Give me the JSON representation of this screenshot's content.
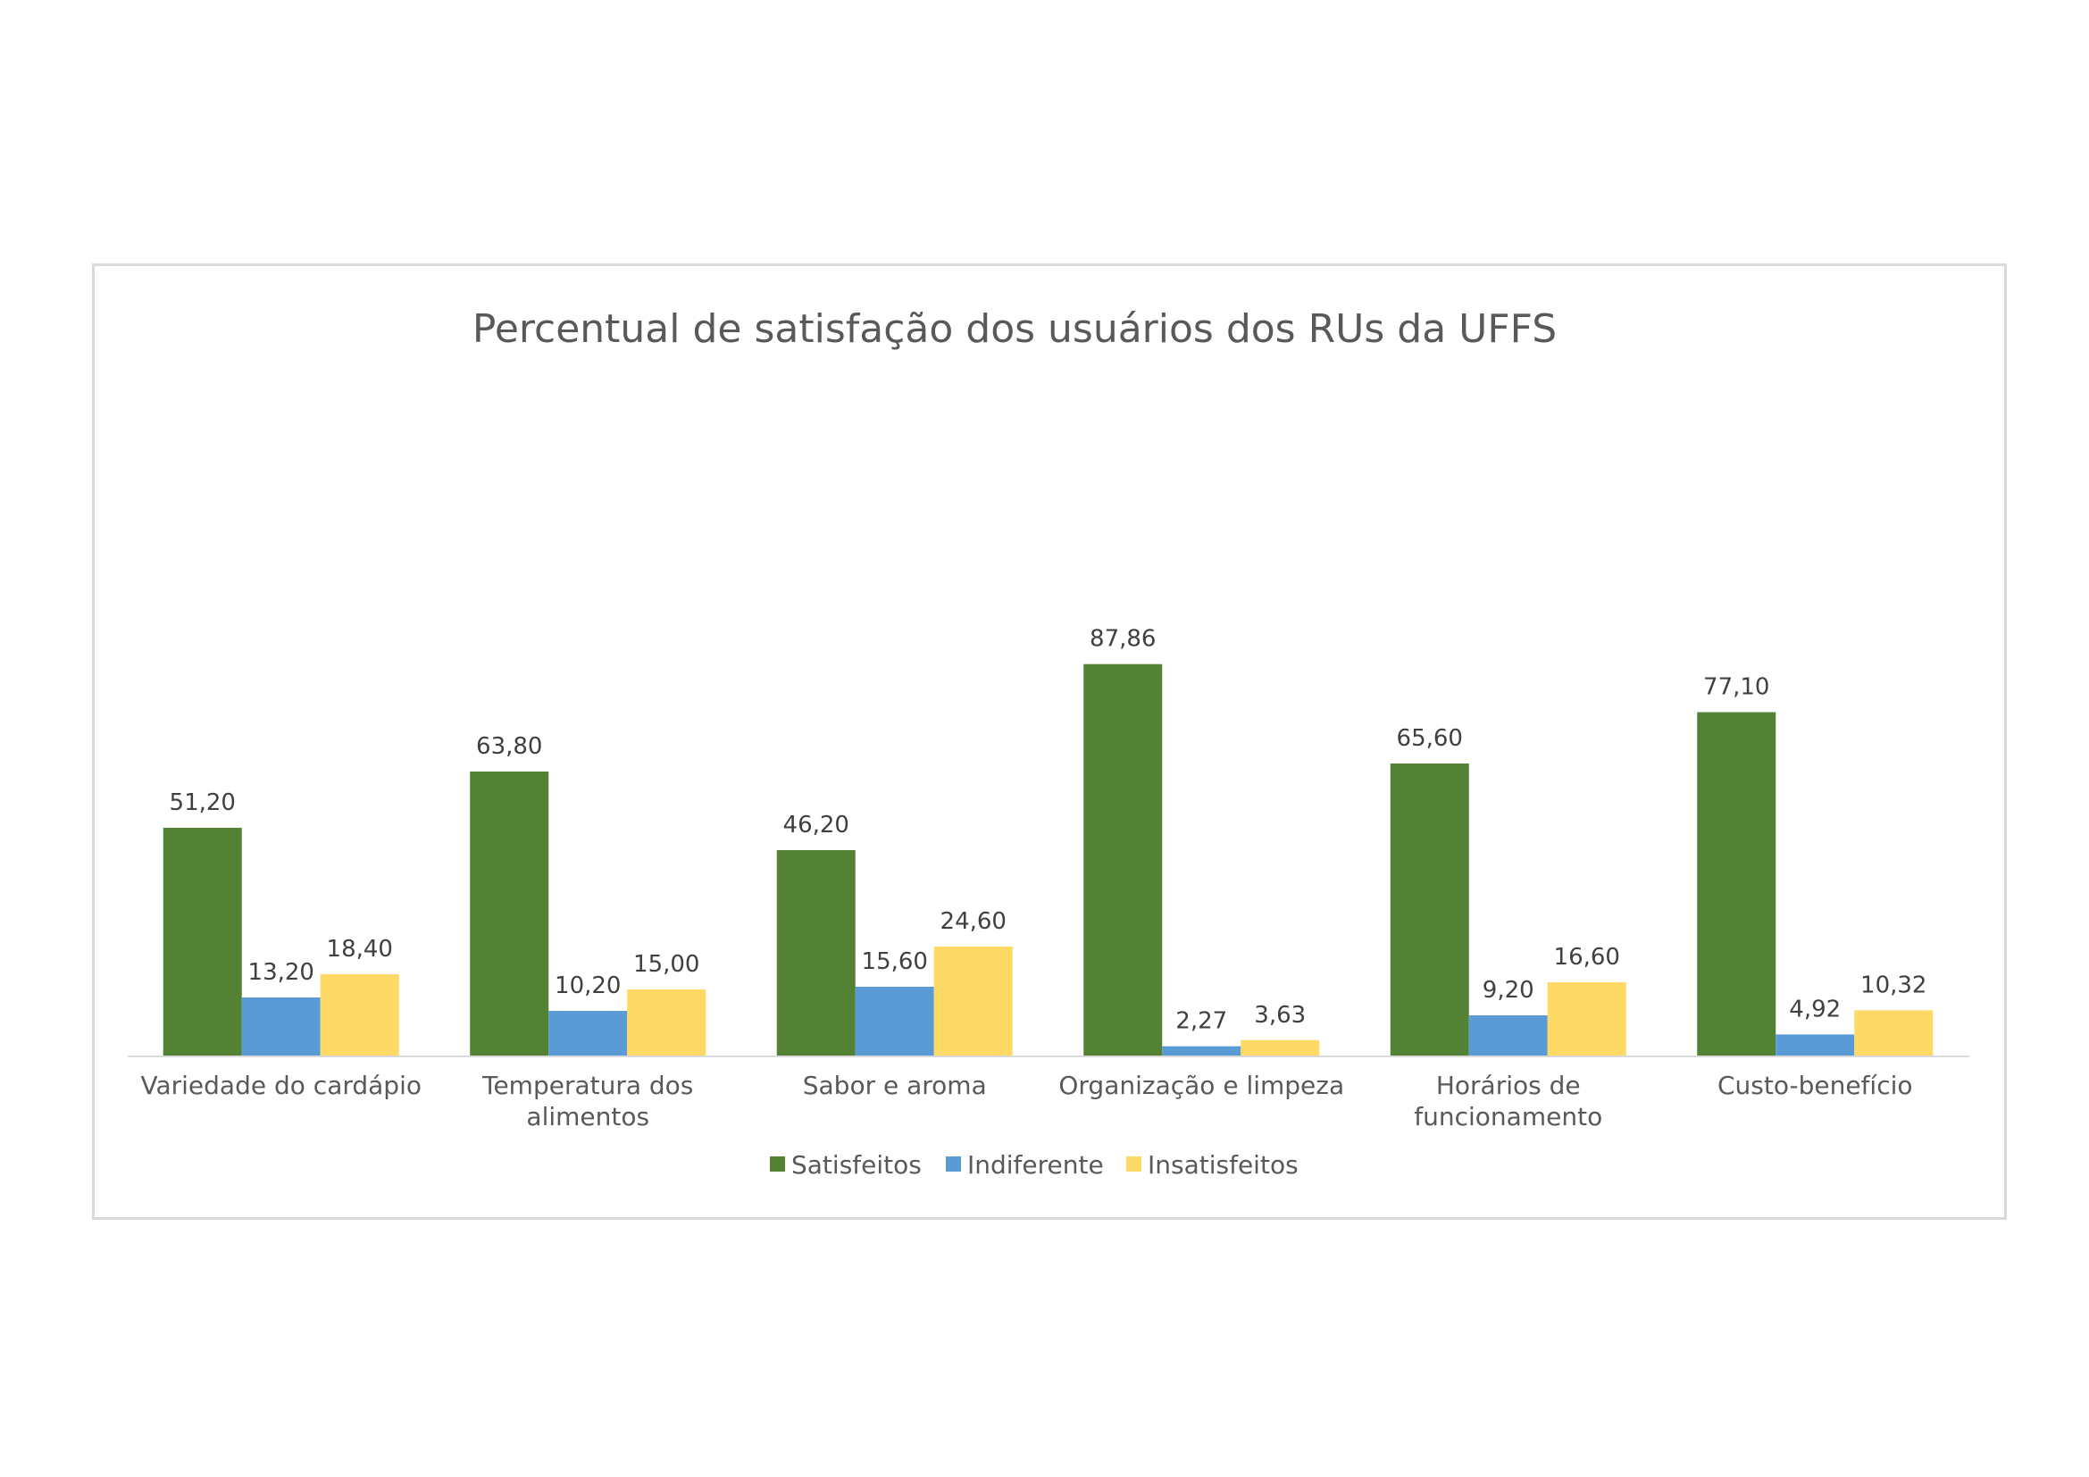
{
  "chart_data": {
    "type": "bar",
    "title": "Percentual de satisfação dos usuários dos RUs da UFFS",
    "categories": [
      [
        "Variedade do cardápio"
      ],
      [
        "Temperatura dos",
        "alimentos"
      ],
      [
        "Sabor e aroma"
      ],
      [
        "Organização e limpeza"
      ],
      [
        "Horários de",
        "funcionamento"
      ],
      [
        "Custo-benefício"
      ]
    ],
    "series": [
      {
        "name": "Satisfeitos",
        "color": "#548235",
        "values": [
          51.2,
          63.8,
          46.2,
          87.86,
          65.6,
          77.1
        ],
        "labels": [
          "51,20",
          "63,80",
          "46,20",
          "87,86",
          "65,60",
          "77,10"
        ]
      },
      {
        "name": "Indiferente",
        "color": "#5b9bd5",
        "values": [
          13.2,
          10.2,
          15.6,
          2.27,
          9.2,
          4.92
        ],
        "labels": [
          "13,20",
          "10,20",
          "15,60",
          "2,27",
          "9,20",
          "4,92"
        ]
      },
      {
        "name": "Insatisfeitos",
        "color": "#ffd966",
        "values": [
          18.4,
          15.0,
          24.6,
          3.63,
          16.6,
          10.32
        ],
        "labels": [
          "18,40",
          "15,00",
          "24,60",
          "3,63",
          "16,60",
          "10,32"
        ]
      }
    ],
    "ylim": [
      0,
      100
    ],
    "grid": false,
    "legend": "bottom"
  }
}
